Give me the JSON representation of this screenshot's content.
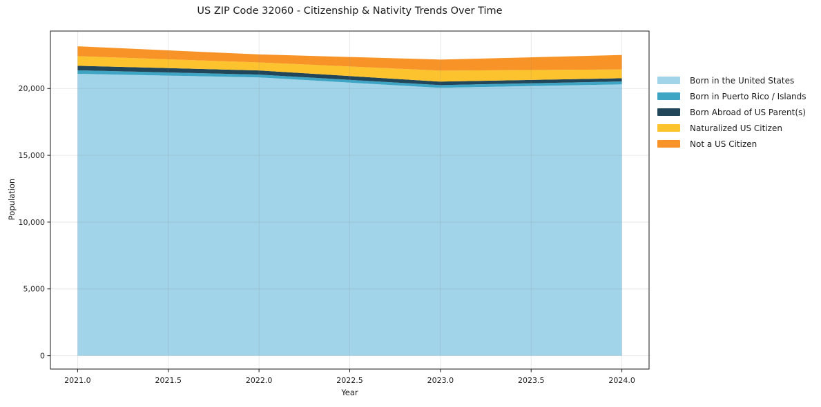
{
  "title": "US ZIP Code 32060 - Citizenship & Nativity Trends Over Time",
  "chart_data": {
    "type": "area",
    "stacked": true,
    "title": "US ZIP Code 32060 - Citizenship & Nativity Trends Over Time",
    "xlabel": "Year",
    "ylabel": "Population",
    "grid": true,
    "legend_position": "right",
    "x": [
      2021,
      2022,
      2023,
      2024
    ],
    "series": [
      {
        "name": "Born in the United States",
        "color": "#a1d3e9",
        "values": [
          21100,
          20830,
          20050,
          20310
        ]
      },
      {
        "name": "Born in Puerto Rico / Islands",
        "color": "#3fa5c5",
        "values": [
          260,
          210,
          205,
          220
        ]
      },
      {
        "name": "Born Abroad of US Parent(s)",
        "color": "#21465a",
        "values": [
          340,
          310,
          260,
          240
        ]
      },
      {
        "name": "Naturalized US Citizen",
        "color": "#fdc32e",
        "values": [
          720,
          600,
          825,
          655
        ]
      },
      {
        "name": "Not a US Citizen",
        "color": "#f89427",
        "values": [
          740,
          600,
          825,
          1080
        ]
      }
    ],
    "xticks": [
      2021.0,
      2021.5,
      2022.0,
      2022.5,
      2023.0,
      2023.5,
      2024.0
    ],
    "xtick_labels": [
      "2021.0",
      "2021.5",
      "2022.0",
      "2022.5",
      "2023.0",
      "2023.5",
      "2024.0"
    ],
    "yticks": [
      0,
      5000,
      10000,
      15000,
      20000
    ],
    "ytick_labels": [
      "0",
      "5,000",
      "10,000",
      "15,000",
      "20,000"
    ],
    "xlim": [
      2020.85,
      2024.15
    ],
    "ylim": [
      -1000,
      24300
    ],
    "colors": {
      "spine": "#1a1a1a",
      "tick_label": "#1c1c1c",
      "gridline": "rgba(130,130,130,0.22)"
    }
  }
}
